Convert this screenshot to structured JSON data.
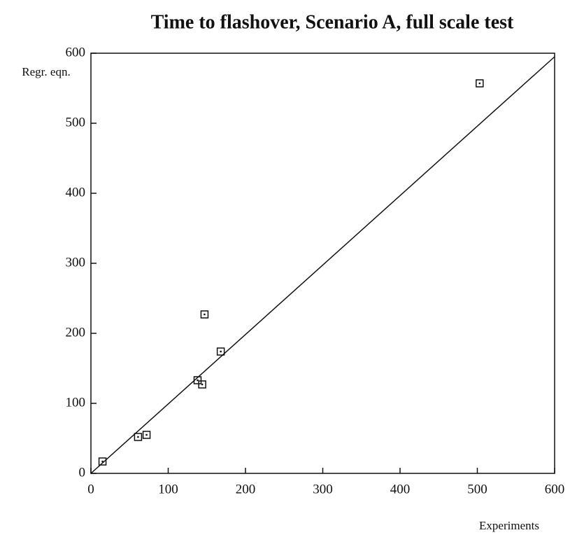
{
  "chart_data": {
    "type": "scatter",
    "title": "Time to flashover, Scenario A, full scale test",
    "y_label": "Regr. eqn.",
    "x_label": "Experiments",
    "series": [
      {
        "x": [
          15,
          61,
          72,
          138,
          144,
          147,
          168,
          503
        ],
        "values": [
          17,
          52,
          55,
          133,
          127,
          227,
          174,
          557
        ],
        "color": "#111111",
        "marker": "square"
      }
    ],
    "lines": [
      {
        "x": [
          0,
          600
        ],
        "values": [
          0,
          595
        ],
        "color": "#111111"
      }
    ],
    "xlim": [
      0,
      600
    ],
    "ylim": [
      0,
      600
    ],
    "xticks": [
      0,
      100,
      200,
      300,
      400,
      500,
      600
    ],
    "yticks": [
      0,
      100,
      200,
      300,
      400,
      500,
      600
    ]
  }
}
